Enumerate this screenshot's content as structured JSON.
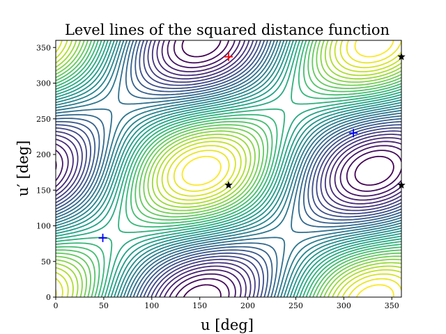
{
  "chart_data": {
    "type": "contour",
    "title": "Level lines of the squared distance function",
    "xlabel": "u [deg]",
    "ylabel": "u′ [deg]",
    "xlim": [
      0,
      360
    ],
    "ylim": [
      0,
      360
    ],
    "xticks": [
      0,
      50,
      100,
      150,
      200,
      250,
      300,
      350
    ],
    "yticks": [
      0,
      50,
      100,
      150,
      200,
      250,
      300,
      350
    ],
    "colormap": "viridis",
    "grid": false,
    "markers": [
      {
        "kind": "plus",
        "color": "#ff0000",
        "x": 180,
        "y": 337
      },
      {
        "kind": "plus",
        "color": "#0000ff",
        "x": 49,
        "y": 83
      },
      {
        "kind": "plus",
        "color": "#0000ff",
        "x": 310,
        "y": 230
      },
      {
        "kind": "star",
        "color": "#000000",
        "x": 180,
        "y": 157
      },
      {
        "kind": "star",
        "color": "#000000",
        "x": 360,
        "y": 157
      },
      {
        "kind": "star",
        "color": "#000000",
        "x": 360,
        "y": 337
      }
    ]
  }
}
